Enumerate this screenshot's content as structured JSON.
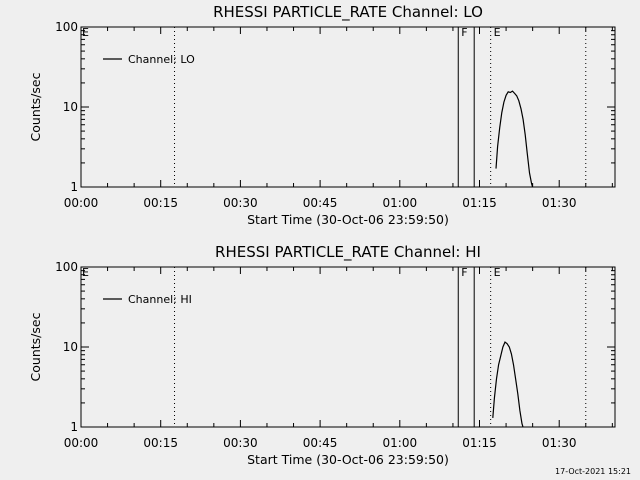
{
  "chart_data": [
    {
      "type": "line",
      "title": "RHESSI PARTICLE_RATE Channel: LO",
      "xlabel": "Start Time (30-Oct-06 23:59:50)",
      "ylabel": "Counts/sec",
      "x_tick_labels": [
        "00:00",
        "00:15",
        "00:30",
        "00:45",
        "01:00",
        "01:15",
        "01:30"
      ],
      "y_tick_labels": [
        "1",
        "10",
        "100"
      ],
      "x_unit": "minutes",
      "xlim": [
        0,
        100.5
      ],
      "ylim": [
        1,
        100
      ],
      "y_scale": "log",
      "legend_position": "top-left",
      "series": [
        {
          "name": "Channel: LO",
          "x": [
            78.1,
            78.4,
            78.8,
            79.2,
            79.6,
            80.0,
            80.4,
            80.8,
            81.2,
            81.6,
            82.0,
            82.4,
            82.8,
            83.2,
            83.6,
            84.0,
            84.4,
            84.8,
            85.2
          ],
          "y": [
            1.7,
            3.2,
            5.5,
            8.5,
            11.5,
            14.0,
            15.5,
            15.2,
            15.8,
            14.8,
            13.8,
            12.0,
            9.5,
            7.0,
            4.5,
            2.6,
            1.5,
            1.1,
            0.9
          ]
        }
      ],
      "annotations": [
        {
          "x": 71.0,
          "label": "F",
          "style": "solid"
        },
        {
          "x": 74.0,
          "label": "",
          "style": "solid"
        },
        {
          "x": 0.0,
          "label": "E",
          "style": "dotted"
        },
        {
          "x": 17.6,
          "label": "",
          "style": "dotted"
        },
        {
          "x": 77.1,
          "label": "E",
          "style": "dotted"
        },
        {
          "x": 95.0,
          "label": "",
          "style": "dotted"
        }
      ]
    },
    {
      "type": "line",
      "title": "RHESSI PARTICLE_RATE Channel: HI",
      "xlabel": "Start Time (30-Oct-06 23:59:50)",
      "ylabel": "Counts/sec",
      "x_tick_labels": [
        "00:00",
        "00:15",
        "00:30",
        "00:45",
        "01:00",
        "01:15",
        "01:30"
      ],
      "y_tick_labels": [
        "1",
        "10",
        "100"
      ],
      "x_unit": "minutes",
      "xlim": [
        0,
        100.5
      ],
      "ylim": [
        1,
        100
      ],
      "y_scale": "log",
      "legend_position": "top-left",
      "series": [
        {
          "name": "Channel: HI",
          "x": [
            77.5,
            77.8,
            78.2,
            78.6,
            79.0,
            79.4,
            79.8,
            80.2,
            80.6,
            81.0,
            81.4,
            81.8,
            82.2,
            82.6,
            83.0,
            83.4,
            83.8,
            84.2
          ],
          "y": [
            1.3,
            2.3,
            4.0,
            6.0,
            7.8,
            10.0,
            11.5,
            11.0,
            10.0,
            8.2,
            6.0,
            4.0,
            2.6,
            1.6,
            1.1,
            0.9,
            0.85,
            0.8
          ]
        }
      ],
      "annotations": [
        {
          "x": 71.0,
          "label": "F",
          "style": "solid"
        },
        {
          "x": 74.0,
          "label": "",
          "style": "solid"
        },
        {
          "x": 0.0,
          "label": "E",
          "style": "dotted"
        },
        {
          "x": 17.6,
          "label": "",
          "style": "dotted"
        },
        {
          "x": 77.1,
          "label": "E",
          "style": "dotted"
        },
        {
          "x": 95.0,
          "label": "",
          "style": "dotted"
        }
      ]
    }
  ],
  "footer": {
    "timestamp": "17-Oct-2021 15:21"
  }
}
